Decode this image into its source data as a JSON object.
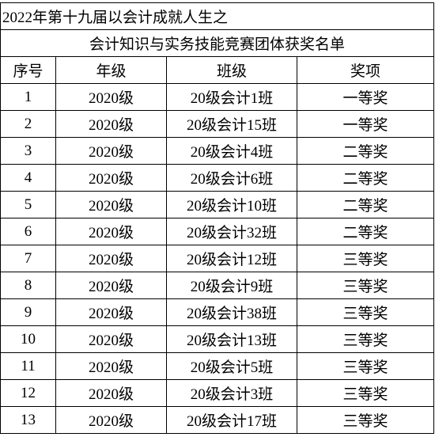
{
  "header": {
    "title": "2022年第十九届以会计成就人生之",
    "subtitle": "会计知识与实务技能竞赛团体获奖名单"
  },
  "table": {
    "columns": [
      "序号",
      "年级",
      "班级",
      "奖项"
    ],
    "rows": [
      [
        1,
        "2020级",
        "20级会计1班",
        "一等奖"
      ],
      [
        2,
        "2020级",
        "20级会计15班",
        "一等奖"
      ],
      [
        3,
        "2020级",
        "20级会计4班",
        "二等奖"
      ],
      [
        4,
        "2020级",
        "20级会计6班",
        "二等奖"
      ],
      [
        5,
        "2020级",
        "20级会计10班",
        "二等奖"
      ],
      [
        6,
        "2020级",
        "20级会计32班",
        "二等奖"
      ],
      [
        7,
        "2020级",
        "20级会计12班",
        "三等奖"
      ],
      [
        8,
        "2020级",
        "20级会计9班",
        "三等奖"
      ],
      [
        9,
        "2020级",
        "20级会计38班",
        "三等奖"
      ],
      [
        10,
        "2020级",
        "20级会计13班",
        "三等奖"
      ],
      [
        11,
        "2020级",
        "20级会计5班",
        "三等奖"
      ],
      [
        12,
        "2020级",
        "20级会计3班",
        "三等奖"
      ],
      [
        13,
        "2020级",
        "20级会计17班",
        "三等奖"
      ]
    ]
  }
}
